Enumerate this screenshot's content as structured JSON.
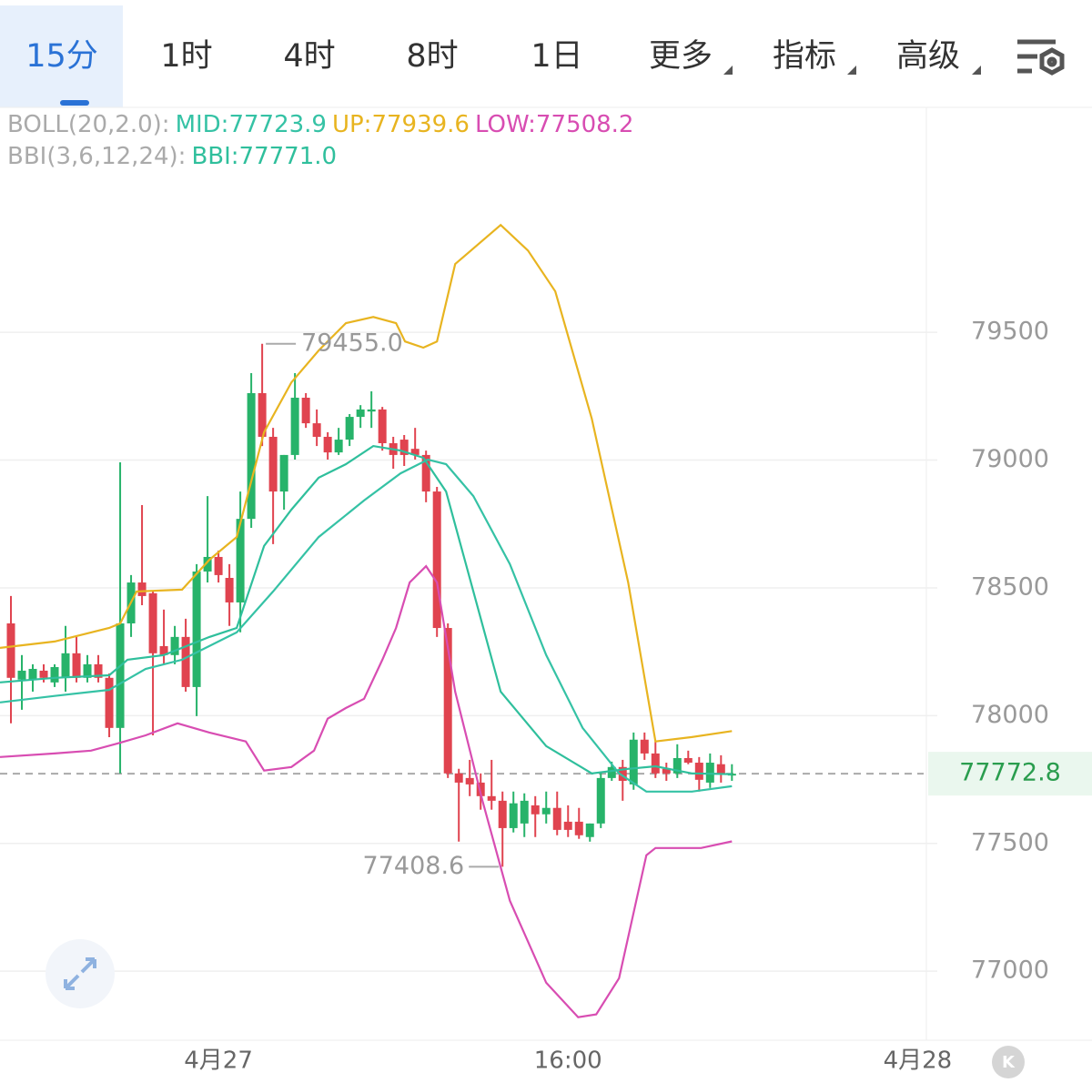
{
  "tabs": [
    "15分",
    "1时",
    "4时",
    "8时",
    "1日",
    "更多",
    "指标",
    "高级"
  ],
  "k_button": "K",
  "chart_data": {
    "type": "candlestick",
    "boll_label": "BOLL(20,2.0):",
    "bbi_label": "BBI(3,6,12,24):",
    "up_color": "#27b36a",
    "down_color": "#e0434f",
    "open": [
      78361,
      78141,
      78141,
      78176,
      78130,
      78148,
      78244,
      78148,
      78201,
      78148,
      77952,
      78361,
      78521,
      78479,
      78272,
      78237,
      78308,
      78112,
      78564,
      78621,
      78539,
      78443,
      78770,
      79262,
      79091,
      78877,
      79020,
      79244,
      79144,
      79091,
      79030,
      79080,
      79169,
      79190,
      79198,
      79066,
      79080,
      79044,
      79020,
      78877,
      78343,
      77774,
      77756,
      77738,
      77685,
      77667,
      77560,
      77578,
      77649,
      77614,
      77639,
      77585,
      77585,
      77525,
      77578,
      77756,
      77799,
      77731,
      77906,
      77852,
      77792,
      77774,
      77834,
      77816,
      77738,
      77810,
      77767
    ],
    "high": [
      78468,
      78237,
      78201,
      78201,
      78201,
      78351,
      78308,
      78237,
      78237,
      78165,
      78991,
      78550,
      78824,
      78486,
      78415,
      78351,
      78379,
      78593,
      78859,
      78646,
      78593,
      78877,
      79340,
      79455.0,
      79126,
      79020,
      79340,
      79262,
      79198,
      79109,
      79126,
      79180,
      79215,
      79269,
      79208,
      79091,
      79098,
      79126,
      79037,
      78895,
      78361,
      77792,
      77827,
      77774,
      77827,
      77703,
      77703,
      77696,
      77685,
      77703,
      77703,
      77649,
      77639,
      77578,
      77781,
      77820,
      77827,
      77934,
      77934,
      77899,
      77816,
      77888,
      77863,
      77838,
      77852,
      77845,
      77810
    ],
    "low": [
      77970,
      78023,
      78094,
      78130,
      78112,
      78094,
      78130,
      78130,
      78130,
      77916,
      77774,
      78308,
      78432,
      77923,
      78201,
      78201,
      78094,
      77998,
      78521,
      78521,
      78351,
      78326,
      78735,
      79055,
      78671,
      78806,
      79002,
      79126,
      79055,
      79002,
      79020,
      79055,
      79126,
      79126,
      79037,
      78966,
      78977,
      79002,
      78835,
      78308,
      77756,
      77507,
      77685,
      77632,
      77632,
      77408.6,
      77543,
      77525,
      77525,
      77578,
      77532,
      77525,
      77518,
      77507,
      77560,
      77745,
      77667,
      77710,
      77827,
      77756,
      77745,
      77756,
      77810,
      77703,
      77717,
      77738,
      77745
    ],
    "close": [
      78148,
      78176,
      78183,
      78148,
      78190,
      78244,
      78148,
      78201,
      78148,
      77952,
      78361,
      78521,
      78468,
      78244,
      78237,
      78308,
      78112,
      78564,
      78621,
      78550,
      78443,
      78770,
      79262,
      79091,
      78877,
      79020,
      79244,
      79144,
      79091,
      79030,
      79080,
      79169,
      79198,
      79198,
      79066,
      79020,
      79020,
      79020,
      78877,
      78343,
      77774,
      77738,
      77731,
      77685,
      77667,
      77560,
      77657,
      77667,
      77614,
      77639,
      77553,
      77553,
      77532,
      77578,
      77756,
      77799,
      77745,
      77906,
      77852,
      77774,
      77774,
      77834,
      77816,
      77749,
      77816,
      77774,
      77772.8
    ],
    "series": [
      {
        "name": "MID:77723.9",
        "color": "#35c2a5",
        "x": [
          -1,
          4,
          9,
          12.33,
          15.67,
          20.67,
          24,
          28.17,
          32.33,
          35.67,
          38.17,
          39.83,
          42.33,
          45.67,
          49,
          52.33,
          55.67,
          58.17,
          62.33,
          66
        ],
        "values": [
          78052,
          78077,
          78101,
          78183,
          78219,
          78326,
          78486,
          78699,
          78842,
          78948,
          79002,
          78984,
          78859,
          78593,
          78237,
          77952,
          77774,
          77703,
          77703,
          77723.9
        ]
      },
      {
        "name": "UP:77939.6",
        "color": "#e8b420",
        "x": [
          -1,
          4,
          9,
          10,
          11.5,
          15.67,
          18.17,
          20.67,
          23.17,
          25.67,
          28.17,
          30.67,
          33.17,
          35.25,
          36.08,
          37.75,
          39,
          40.67,
          44.83,
          47.33,
          49.83,
          53.17,
          56.5,
          59,
          62.33,
          66
        ],
        "values": [
          78265,
          78290,
          78343,
          78361,
          78486,
          78493,
          78610,
          78699,
          79109,
          79304,
          79429,
          79536,
          79560,
          79536,
          79464,
          79440,
          79464,
          79767,
          79920,
          79820,
          79660,
          79162,
          78521,
          77899,
          77916,
          77939.6
        ]
      },
      {
        "name": "LOW:77508.2",
        "color": "#d84db2",
        "x": [
          -1,
          4,
          7.33,
          9.83,
          12.33,
          15.25,
          18.17,
          21.5,
          23.17,
          25.67,
          27.75,
          29,
          30.67,
          32.33,
          34,
          35.25,
          36.5,
          38,
          39,
          40.67,
          43.17,
          45.67,
          49,
          51.92,
          53.58,
          55.67,
          58.17,
          59,
          63.17,
          66
        ],
        "values": [
          77838,
          77852,
          77863,
          77892,
          77923,
          77970,
          77934,
          77899,
          77785,
          77799,
          77863,
          77988,
          78030,
          78066,
          78219,
          78343,
          78521,
          78585,
          78521,
          78094,
          77667,
          77276,
          76955,
          76820,
          76831,
          76973,
          77454,
          77482,
          77482,
          77508.2
        ]
      },
      {
        "name": "BBI:77771.0",
        "color": "#2fbf9c",
        "x": [
          -1,
          4,
          9,
          10.67,
          14,
          18.17,
          20.67,
          23.17,
          25.67,
          28.17,
          30.67,
          33.17,
          35.67,
          37.75,
          39.83,
          42.33,
          44.83,
          49,
          53.17,
          56.5,
          59,
          62.33,
          66
        ],
        "values": [
          78130,
          78148,
          78158,
          78219,
          78237,
          78308,
          78343,
          78664,
          78806,
          78931,
          78984,
          79055,
          79037,
          79009,
          78877,
          78486,
          78094,
          77881,
          77774,
          77792,
          77802,
          77774,
          77771.0
        ]
      }
    ],
    "xlim": [
      -1,
      83.8
    ],
    "xticks": [
      {
        "value": 19,
        "label": "4月27"
      },
      {
        "value": 51,
        "label": "16:00"
      },
      {
        "value": 83,
        "label": "4月28"
      }
    ],
    "ylim": [
      76730,
      80380
    ],
    "yticks": [
      77000,
      77500,
      78000,
      78500,
      79000,
      79500
    ],
    "grid": true,
    "high_annotation": {
      "x": 23,
      "value": 79455.0,
      "label": "79455.0"
    },
    "low_annotation": {
      "x": 45,
      "value": 77408.6
    },
    "last_price": 77772.8
  }
}
